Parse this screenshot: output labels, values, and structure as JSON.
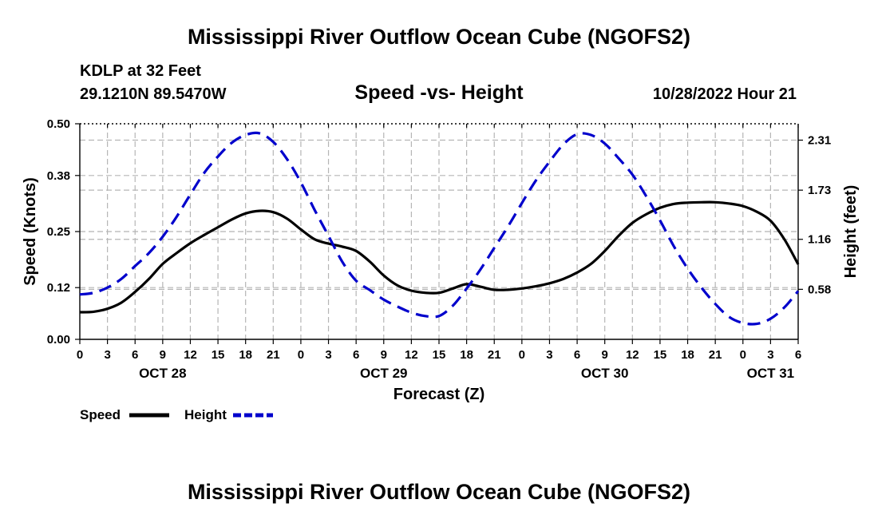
{
  "page_title": "Mississippi River Outflow Ocean Cube (NGOFS2)",
  "footer_title": "Mississippi River Outflow Ocean Cube (NGOFS2)",
  "station": "KDLP at 32 Feet",
  "coords": "29.1210N  89.5470W",
  "chart_data": {
    "type": "line",
    "title": "Speed -vs- Height",
    "date_label": "10/28/2022 Hour 21",
    "xlabel": "Forecast (Z)",
    "ylabel": "Speed (Knots)",
    "y2label": "Height (feet)",
    "ylim": [
      0,
      0.5
    ],
    "y2lim": [
      0,
      2.5
    ],
    "yticks": [
      "0.00",
      "0.12",
      "0.25",
      "0.38",
      "0.50"
    ],
    "y2ticks": [
      "0.58",
      "1.16",
      "1.73",
      "2.31"
    ],
    "xticks": [
      "0",
      "3",
      "6",
      "9",
      "12",
      "15",
      "18",
      "21",
      "0",
      "3",
      "6",
      "9",
      "12",
      "15",
      "18",
      "21",
      "0",
      "3",
      "6",
      "9",
      "12",
      "15",
      "18",
      "21",
      "0",
      "3",
      "6"
    ],
    "day_labels": [
      {
        "hour": 9,
        "label": "OCT 28"
      },
      {
        "hour": 33,
        "label": "OCT 29"
      },
      {
        "hour": 57,
        "label": "OCT 30"
      },
      {
        "hour": 75,
        "label": "OCT 31"
      }
    ],
    "x_hours": [
      0,
      1.5,
      3,
      4.5,
      6,
      7.5,
      9,
      10.5,
      12,
      13.5,
      15,
      16.5,
      18,
      19.5,
      21,
      22.5,
      24,
      25.5,
      27,
      28.5,
      30,
      31.5,
      33,
      34.5,
      36,
      37.5,
      39,
      40.5,
      42,
      43.5,
      45,
      46.5,
      48,
      49.5,
      51,
      52.5,
      54,
      55.5,
      57,
      58.5,
      60,
      61.5,
      63,
      64.5,
      66,
      67.5,
      69,
      70.5,
      72,
      73.5,
      75,
      76.5,
      78
    ],
    "series": [
      {
        "name": "Speed",
        "axis": "left",
        "color": "#000000",
        "dash": "solid",
        "values": [
          0.063,
          0.064,
          0.071,
          0.085,
          0.11,
          0.14,
          0.175,
          0.2,
          0.223,
          0.242,
          0.26,
          0.278,
          0.292,
          0.298,
          0.295,
          0.28,
          0.255,
          0.232,
          0.222,
          0.215,
          0.205,
          0.18,
          0.148,
          0.125,
          0.113,
          0.108,
          0.108,
          0.118,
          0.128,
          0.122,
          0.115,
          0.115,
          0.118,
          0.123,
          0.13,
          0.14,
          0.155,
          0.175,
          0.205,
          0.24,
          0.27,
          0.29,
          0.305,
          0.314,
          0.317,
          0.318,
          0.318,
          0.315,
          0.309,
          0.296,
          0.275,
          0.232,
          0.174
        ]
      },
      {
        "name": "Height",
        "axis": "right",
        "color": "#0000cc",
        "dash": "dashed",
        "values": [
          0.52,
          0.54,
          0.6,
          0.7,
          0.85,
          1.0,
          1.19,
          1.42,
          1.68,
          1.93,
          2.12,
          2.28,
          2.37,
          2.39,
          2.29,
          2.09,
          1.82,
          1.5,
          1.2,
          0.9,
          0.68,
          0.57,
          0.46,
          0.38,
          0.31,
          0.27,
          0.27,
          0.39,
          0.59,
          0.81,
          1.06,
          1.31,
          1.58,
          1.84,
          2.06,
          2.26,
          2.38,
          2.37,
          2.27,
          2.1,
          1.91,
          1.66,
          1.38,
          1.08,
          0.82,
          0.6,
          0.41,
          0.26,
          0.19,
          0.18,
          0.24,
          0.37,
          0.56
        ]
      }
    ],
    "legend": [
      {
        "name": "Speed",
        "color": "#000000",
        "dash": "solid"
      },
      {
        "name": "Height",
        "color": "#0000cc",
        "dash": "dashed"
      }
    ]
  }
}
